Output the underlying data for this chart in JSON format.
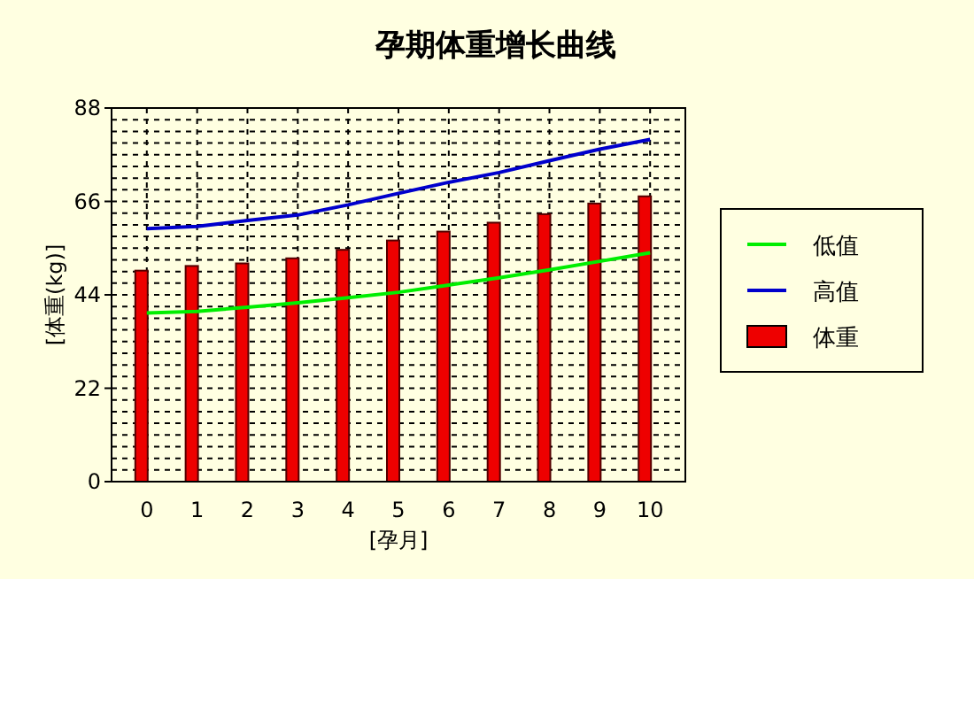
{
  "chart_data": {
    "type": "bar",
    "title": "孕期体重增长曲线",
    "xlabel": "[孕月]",
    "ylabel": "[体重(kg)]",
    "categories": [
      "0",
      "1",
      "2",
      "3",
      "4",
      "5",
      "6",
      "7",
      "8",
      "9",
      "10"
    ],
    "series": [
      {
        "name": "低值",
        "type": "line",
        "color": "#00ee00",
        "values": [
          39.7,
          40.1,
          41.1,
          42.1,
          43.3,
          44.6,
          46.3,
          48.0,
          49.9,
          51.9,
          53.9
        ]
      },
      {
        "name": "高值",
        "type": "line",
        "color": "#0000cc",
        "values": [
          59.6,
          60.1,
          61.5,
          62.8,
          65.2,
          67.9,
          70.5,
          72.8,
          75.6,
          78.3,
          80.6
        ]
      },
      {
        "name": "体重",
        "color": "#ee0000",
        "values": [
          49.7,
          50.8,
          51.4,
          52.6,
          54.6,
          56.8,
          58.9,
          61.0,
          63.0,
          65.5,
          67.2
        ]
      }
    ],
    "ylim": [
      0,
      88
    ],
    "yticks": [
      0,
      {
        "value": 2.75,
        "label": null
      },
      {
        "value": 5.5,
        "label": null
      },
      {
        "value": 8.25,
        "label": null
      },
      {
        "value": 11,
        "label": null
      },
      {
        "value": 13.75,
        "label": null
      },
      {
        "value": 16.5,
        "label": null
      },
      {
        "value": 19.25,
        "label": null
      },
      22,
      {
        "value": 24.75,
        "label": null
      },
      {
        "value": 27.5,
        "label": null
      },
      {
        "value": 30.25,
        "label": null
      },
      {
        "value": 33,
        "label": null
      },
      {
        "value": 35.75,
        "label": null
      },
      {
        "value": 38.5,
        "label": null
      },
      {
        "value": 41.25,
        "label": null
      },
      44,
      {
        "value": 46.75,
        "label": null
      },
      {
        "value": 49.5,
        "label": null
      },
      {
        "value": 52.25,
        "label": null
      },
      {
        "value": 55,
        "label": null
      },
      {
        "value": 57.75,
        "label": null
      },
      {
        "value": 60.5,
        "label": null
      },
      {
        "value": 63.25,
        "label": null
      },
      66,
      {
        "value": 68.75,
        "label": null
      },
      {
        "value": 71.5,
        "label": null
      },
      {
        "value": 74.25,
        "label": null
      },
      {
        "value": 77,
        "label": null
      },
      {
        "value": 79.75,
        "label": null
      },
      {
        "value": 82.5,
        "label": null
      },
      {
        "value": 85.25,
        "label": null
      },
      88
    ],
    "grid": true,
    "legend": "right"
  }
}
